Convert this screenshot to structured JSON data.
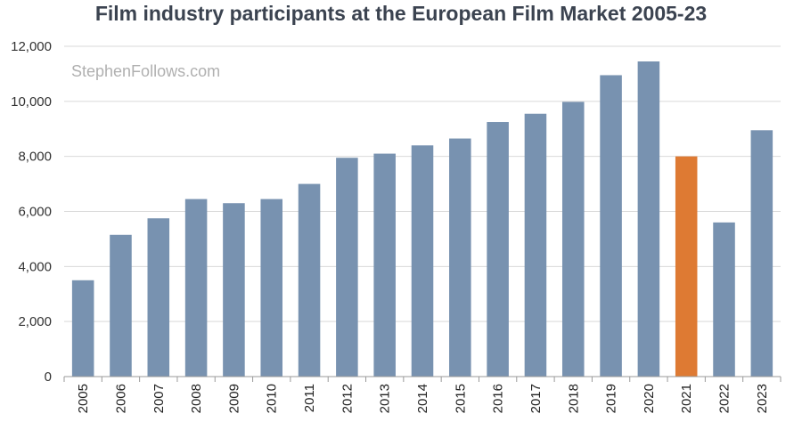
{
  "chart_data": {
    "type": "bar",
    "title": "Film industry participants at the European Film Market 2005-23",
    "xlabel": "",
    "ylabel": "",
    "ylim": [
      0,
      12000
    ],
    "yticks": [
      "0",
      "2,000",
      "4,000",
      "6,000",
      "8,000",
      "10,000",
      "12,000"
    ],
    "ytick_values": [
      0,
      2000,
      4000,
      6000,
      8000,
      10000,
      12000
    ],
    "grid": true,
    "watermark": "StephenFollows.com",
    "categories": [
      "2005",
      "2006",
      "2007",
      "2008",
      "2009",
      "2010",
      "2011",
      "2012",
      "2013",
      "2014",
      "2015",
      "2016",
      "2017",
      "2018",
      "2019",
      "2020",
      "2021",
      "2022",
      "2023"
    ],
    "values": [
      3500,
      5150,
      5750,
      6450,
      6300,
      6450,
      7000,
      7950,
      8100,
      8400,
      8650,
      9250,
      9550,
      9980,
      10950,
      11450,
      8000,
      5600,
      8950
    ],
    "highlight_index": 16,
    "colors": {
      "bar": "#7892b0",
      "highlight": "#de7a33",
      "grid": "#d9d9d9",
      "axis": "#9a9a9a"
    }
  }
}
